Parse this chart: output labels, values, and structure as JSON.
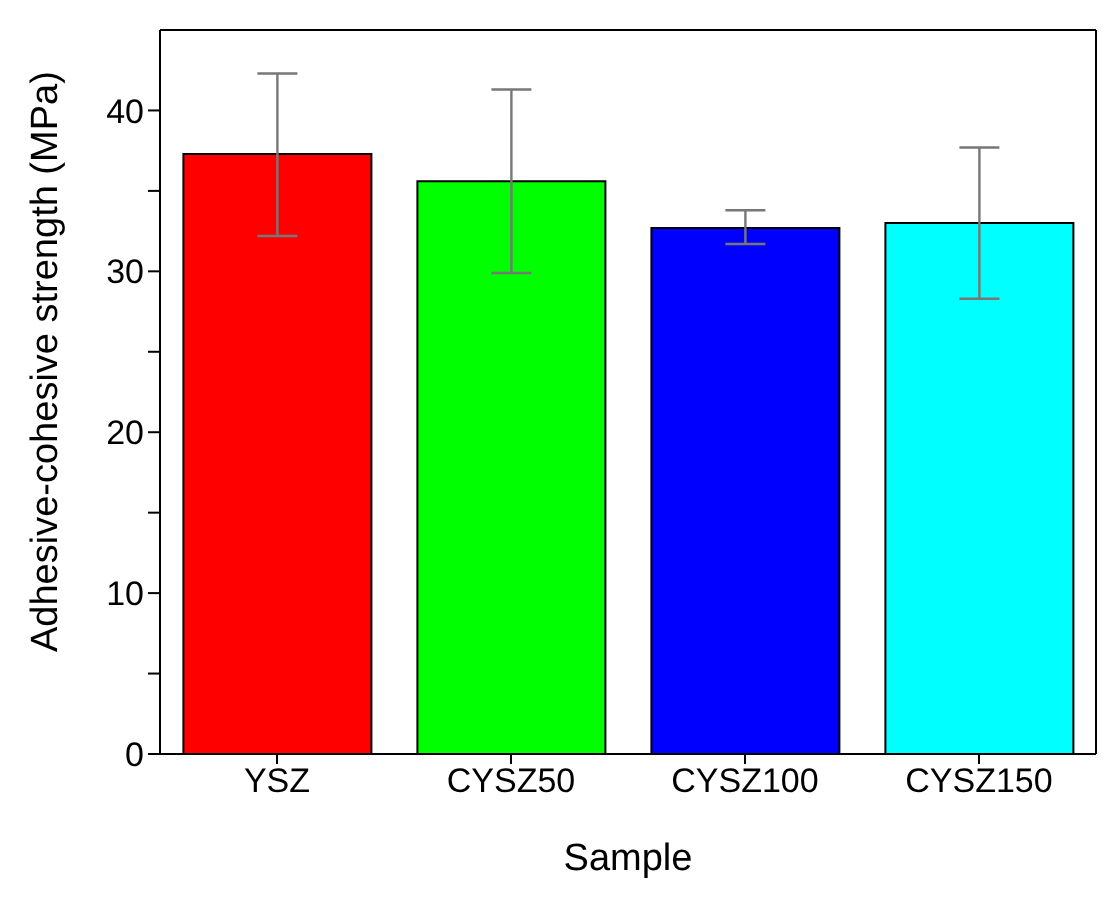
{
  "chart_data": {
    "type": "bar",
    "xlabel": "Sample",
    "ylabel": "Adhesive-cohesive strength (MPa)",
    "categories": [
      "YSZ",
      "CYSZ50",
      "CYSZ100",
      "CYSZ150"
    ],
    "values": [
      37.3,
      35.6,
      32.7,
      33.0
    ],
    "colors": [
      "#ff0000",
      "#00ff00",
      "#0000ff",
      "#00ffff"
    ],
    "errors": [
      [
        32.2,
        42.3
      ],
      [
        29.9,
        41.3
      ],
      [
        31.7,
        33.8
      ],
      [
        28.3,
        37.7
      ]
    ],
    "ylim": [
      0,
      45
    ],
    "yticks": [
      0,
      {
        "value": 5,
        "label": null
      },
      10,
      {
        "value": 15,
        "label": null
      },
      20,
      {
        "value": 25,
        "label": null
      },
      30,
      {
        "value": 35,
        "label": null
      },
      40
    ],
    "grid": false,
    "legend": false
  }
}
